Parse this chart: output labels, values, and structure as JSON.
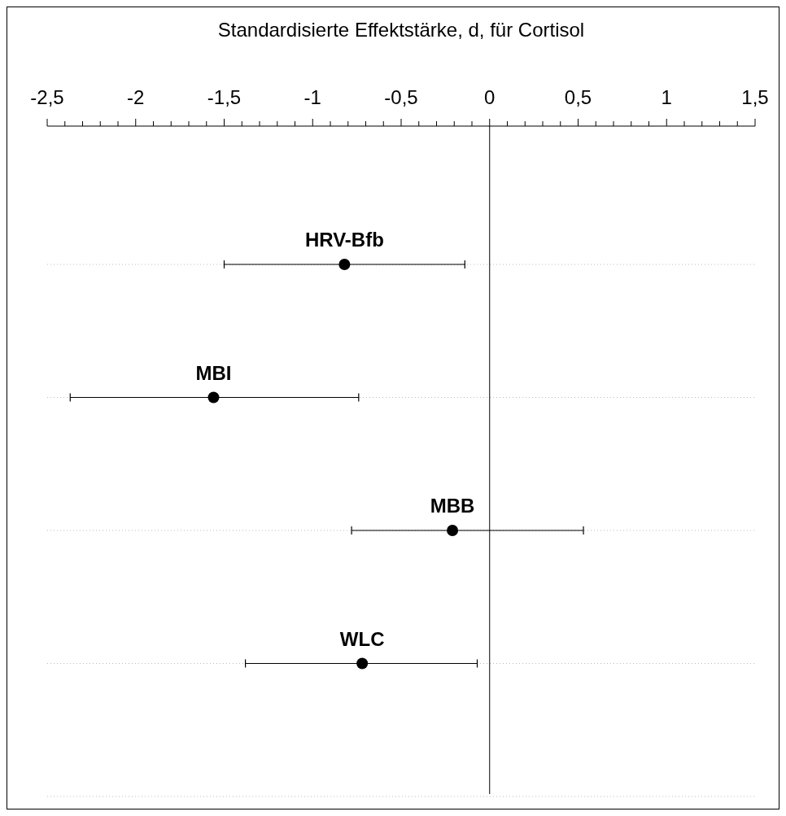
{
  "chart_data": {
    "type": "scatter",
    "xlabel": "Standardisierte Effektstärke, d, für Cortisol",
    "categories": [
      "HRV-Bfb",
      "MBI",
      "MBB",
      "WLC",
      null
    ],
    "values": [
      -0.82,
      -1.56,
      -0.21,
      -0.72,
      null
    ],
    "errors": [
      [
        -1.5,
        -0.14
      ],
      [
        -2.37,
        -0.74
      ],
      [
        -0.78,
        0.53
      ],
      [
        -1.38,
        -0.07
      ],
      null
    ],
    "color": "#000000",
    "marker": "circle",
    "orientation": "horizontal",
    "grid": "y",
    "tick_labels": "x",
    "xlim": [
      -2.5,
      1.5
    ],
    "xticks": [
      {
        "value": -2.5,
        "label": "-2,5"
      },
      {
        "value": -2.4,
        "label": null
      },
      {
        "value": -2.3,
        "label": null
      },
      {
        "value": -2.2,
        "label": null
      },
      {
        "value": -2.1,
        "label": null
      },
      -2,
      {
        "value": -1.9,
        "label": null
      },
      {
        "value": -1.8,
        "label": null
      },
      {
        "value": -1.7,
        "label": null
      },
      {
        "value": -1.6,
        "label": null
      },
      {
        "value": -1.5,
        "label": "-1,5"
      },
      {
        "value": -1.4,
        "label": null
      },
      {
        "value": -1.3,
        "label": null
      },
      {
        "value": -1.2,
        "label": null
      },
      {
        "value": -1.1,
        "label": null
      },
      -1,
      {
        "value": -0.9,
        "label": null
      },
      {
        "value": -0.8,
        "label": null
      },
      {
        "value": -0.7,
        "label": null
      },
      {
        "value": -0.6,
        "label": null
      },
      {
        "value": -0.5,
        "label": "-0,5"
      },
      {
        "value": -0.4,
        "label": null
      },
      {
        "value": -0.3,
        "label": null
      },
      {
        "value": -0.2,
        "label": null
      },
      {
        "value": -0.1,
        "label": null
      },
      0,
      {
        "value": 0.1,
        "label": null
      },
      {
        "value": 0.2,
        "label": null
      },
      {
        "value": 0.3,
        "label": null
      },
      {
        "value": 0.4,
        "label": null
      },
      {
        "value": 0.5,
        "label": "0,5"
      },
      {
        "value": 0.6,
        "label": null
      },
      {
        "value": 0.7,
        "label": null
      },
      {
        "value": 0.8,
        "label": null
      },
      {
        "value": 0.9,
        "label": null
      },
      1,
      {
        "value": 1.1,
        "label": null
      },
      {
        "value": 1.2,
        "label": null
      },
      {
        "value": 1.3,
        "label": null
      },
      {
        "value": 1.4,
        "label": null
      },
      {
        "value": 1.5,
        "label": "1,5"
      }
    ],
    "ref_lines": [
      {
        "axis": "x",
        "value": 0,
        "color": "#000000"
      }
    ]
  }
}
